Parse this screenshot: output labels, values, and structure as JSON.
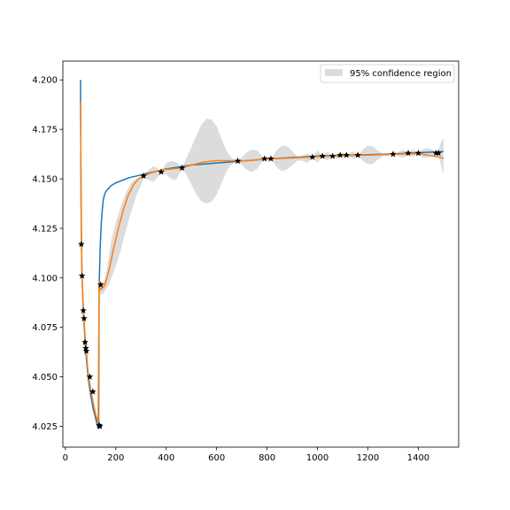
{
  "chart_data": {
    "type": "line",
    "title": "",
    "xlabel": "",
    "ylabel": "",
    "xlim": [
      -10,
      1560
    ],
    "ylim": [
      4.0145,
      4.2095
    ],
    "xticks": [
      0,
      200,
      400,
      600,
      800,
      1000,
      1200,
      1400
    ],
    "yticks": [
      4.025,
      4.05,
      4.075,
      4.1,
      4.125,
      4.15,
      4.175,
      4.2
    ],
    "ytick_labels": [
      "4.025",
      "4.050",
      "4.075",
      "4.100",
      "4.125",
      "4.150",
      "4.175",
      "4.200"
    ],
    "grid": false,
    "legend": {
      "position": "top-right",
      "entries": [
        "95% confidence region"
      ]
    },
    "colors": {
      "blue": "#1f77b4",
      "orange": "#ff7f0e",
      "band": "#dcdcdc",
      "stars": "#000000"
    },
    "series": [
      {
        "kind": "line",
        "color": "#1f77b4",
        "x": [
          60,
          62,
          64,
          66,
          70,
          75,
          80,
          90,
          100,
          110,
          120,
          128,
          132,
          134,
          138,
          142,
          146,
          150,
          155,
          160,
          170,
          180,
          200,
          250,
          300,
          350,
          400,
          500,
          600,
          700,
          800,
          900,
          1000,
          1100,
          1200,
          1300,
          1400,
          1500
        ],
        "y": [
          4.2,
          4.14,
          4.115,
          4.101,
          4.087,
          4.075,
          4.064,
          4.05,
          4.041,
          4.034,
          4.029,
          4.025,
          4.024,
          4.096,
          4.115,
          4.127,
          4.134,
          4.139,
          4.142,
          4.1435,
          4.145,
          4.1465,
          4.148,
          4.1505,
          4.152,
          4.1535,
          4.155,
          4.157,
          4.158,
          4.159,
          4.16,
          4.1608,
          4.1615,
          4.1618,
          4.1622,
          4.1626,
          4.1632,
          4.1638
        ]
      },
      {
        "kind": "line",
        "color": "#ff7f0e",
        "x": [
          60,
          62,
          64,
          66,
          70,
          75,
          80,
          85,
          90,
          100,
          110,
          120,
          130,
          134,
          138,
          145,
          155,
          165,
          175,
          190,
          210,
          230,
          250,
          270,
          290,
          310,
          340,
          380,
          420,
          460,
          500,
          550,
          600,
          650,
          700,
          750,
          800,
          850,
          900,
          1000,
          1100,
          1200,
          1300,
          1400,
          1500
        ],
        "y": [
          4.189,
          4.15,
          4.118,
          4.101,
          4.088,
          4.077,
          4.067,
          4.06,
          4.052,
          4.044,
          4.037,
          4.031,
          4.027,
          4.098,
          4.094,
          4.0945,
          4.096,
          4.1,
          4.105,
          4.114,
          4.125,
          4.1345,
          4.142,
          4.147,
          4.15,
          4.1515,
          4.153,
          4.1545,
          4.155,
          4.1555,
          4.157,
          4.1585,
          4.1592,
          4.1592,
          4.159,
          4.1595,
          4.16,
          4.1603,
          4.1606,
          4.1612,
          4.1617,
          4.162,
          4.1624,
          4.1628,
          4.1605
        ]
      },
      {
        "kind": "scatter",
        "marker": "star",
        "color": "#000000",
        "x": [
          63,
          66,
          71,
          74,
          78,
          81,
          83,
          97,
          109,
          134,
          137,
          140,
          310,
          380,
          463,
          684,
          790,
          815,
          980,
          1020,
          1060,
          1090,
          1115,
          1160,
          1300,
          1360,
          1400,
          1470,
          1480
        ],
        "y": [
          4.117,
          4.101,
          4.0835,
          4.0795,
          4.0675,
          4.0645,
          4.063,
          4.05,
          4.0425,
          4.0255,
          4.025,
          4.0965,
          4.1515,
          4.1535,
          4.1555,
          4.159,
          4.1602,
          4.1602,
          4.161,
          4.1615,
          4.1615,
          4.162,
          4.162,
          4.162,
          4.1625,
          4.163,
          4.163,
          4.163,
          4.163
        ]
      }
    ],
    "confidence_band": {
      "label": "95% confidence region",
      "x": [
        60,
        66,
        70,
        80,
        90,
        100,
        110,
        120,
        130,
        134,
        138,
        145,
        155,
        165,
        175,
        185,
        200,
        220,
        240,
        260,
        280,
        300,
        310,
        330,
        350,
        380,
        400,
        420,
        440,
        463,
        480,
        500,
        520,
        540,
        560,
        580,
        600,
        620,
        640,
        660,
        684,
        700,
        720,
        740,
        760,
        790,
        815,
        840,
        860,
        880,
        900,
        920,
        940,
        960,
        980,
        1000,
        1020,
        1040,
        1060,
        1075,
        1090,
        1100,
        1115,
        1140,
        1160,
        1180,
        1200,
        1220,
        1240,
        1260,
        1280,
        1300,
        1320,
        1340,
        1360,
        1380,
        1400,
        1420,
        1440,
        1460,
        1470,
        1480,
        1490,
        1500
      ],
      "lower": [
        4.188,
        4.101,
        4.087,
        4.066,
        4.051,
        4.043,
        4.036,
        4.03,
        4.026,
        4.097,
        4.092,
        4.0915,
        4.093,
        4.095,
        4.097,
        4.101,
        4.106,
        4.114,
        4.124,
        4.133,
        4.141,
        4.147,
        4.1505,
        4.1495,
        4.1485,
        4.153,
        4.152,
        4.15,
        4.1495,
        4.1555,
        4.152,
        4.147,
        4.142,
        4.1385,
        4.1375,
        4.1385,
        4.142,
        4.148,
        4.154,
        4.1575,
        4.159,
        4.157,
        4.1545,
        4.1535,
        4.155,
        4.1602,
        4.1602,
        4.1558,
        4.1538,
        4.1548,
        4.157,
        4.1592,
        4.1592,
        4.158,
        4.161,
        4.1582,
        4.1615,
        4.1592,
        4.1615,
        4.16,
        4.162,
        4.161,
        4.162,
        4.16,
        4.162,
        4.159,
        4.1575,
        4.1575,
        4.1598,
        4.1615,
        4.1615,
        4.1625,
        4.1615,
        4.1605,
        4.163,
        4.161,
        4.163,
        4.1605,
        4.161,
        4.162,
        4.163,
        4.1615,
        4.157,
        4.152
      ],
      "upper": [
        4.19,
        4.102,
        4.089,
        4.068,
        4.053,
        4.045,
        4.038,
        4.032,
        4.028,
        4.099,
        4.096,
        4.0975,
        4.099,
        4.105,
        4.113,
        4.121,
        4.128,
        4.136,
        4.143,
        4.148,
        4.15,
        4.151,
        4.1525,
        4.1545,
        4.1565,
        4.154,
        4.158,
        4.159,
        4.1585,
        4.1555,
        4.1605,
        4.166,
        4.172,
        4.1775,
        4.1805,
        4.18,
        4.1765,
        4.17,
        4.164,
        4.1605,
        4.159,
        4.161,
        4.1635,
        4.1648,
        4.1645,
        4.1602,
        4.1602,
        4.1648,
        4.1668,
        4.1665,
        4.164,
        4.1612,
        4.1615,
        4.163,
        4.161,
        4.1645,
        4.1615,
        4.1638,
        4.1615,
        4.163,
        4.162,
        4.163,
        4.162,
        4.164,
        4.162,
        4.1648,
        4.1668,
        4.1665,
        4.1642,
        4.1625,
        4.1628,
        4.1625,
        4.1635,
        4.1648,
        4.163,
        4.165,
        4.163,
        4.1652,
        4.1655,
        4.1645,
        4.163,
        4.1648,
        4.1685,
        4.1705
      ]
    }
  }
}
